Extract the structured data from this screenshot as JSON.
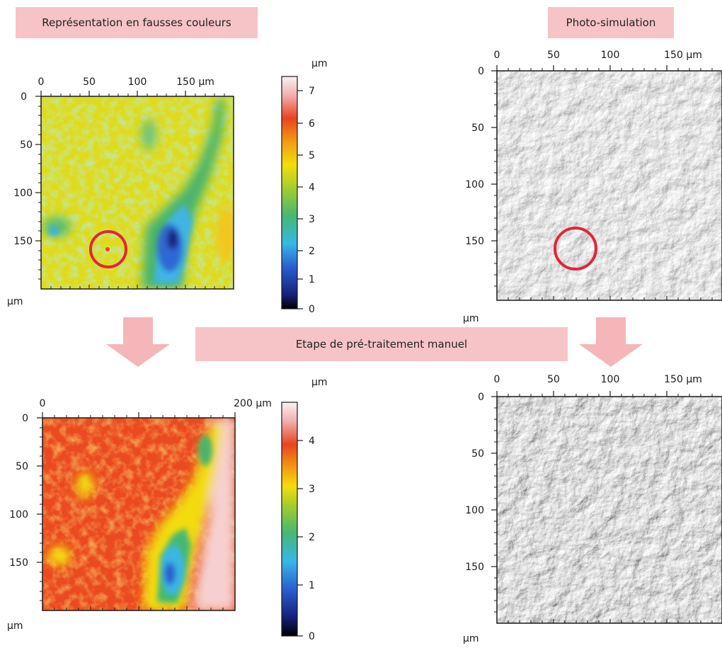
{
  "labels": {
    "false_color": "Représentation en fausses couleurs",
    "photo_sim": "Photo-simulation",
    "pretreatment": "Etape de pré-traitement manuel"
  },
  "panels": {
    "top_left": {
      "x_ticks": [
        "0",
        "50",
        "100",
        "150 µm"
      ],
      "y_ticks": [
        "0",
        "50",
        "100",
        "150"
      ],
      "unit_label": "µm"
    },
    "top_right": {
      "x_ticks": [
        "0",
        "50",
        "100",
        "150 µm"
      ],
      "y_ticks": [
        "0",
        "50",
        "100",
        "150"
      ],
      "unit_label": "µm"
    },
    "bottom_left": {
      "x_ticks": [
        "0",
        "200 µm"
      ],
      "y_ticks": [
        "0",
        "50",
        "100",
        "150"
      ],
      "unit_label": "µm"
    },
    "bottom_right": {
      "x_ticks": [
        "0",
        "50",
        "100",
        "150 µm"
      ],
      "y_ticks": [
        "0",
        "50",
        "100",
        "150"
      ],
      "unit_label": "µm"
    }
  },
  "colorbars": {
    "top": {
      "unit": "µm",
      "ticks": [
        "7",
        "6",
        "5",
        "4",
        "3",
        "2",
        "1",
        "0"
      ]
    },
    "bottom": {
      "unit": "µm",
      "ticks": [
        "4",
        "3",
        "2",
        "1",
        "0"
      ]
    }
  },
  "colors": {
    "label_bg": "#f6c4c6",
    "arrow": "#f4b6b8",
    "highlight_circle": "#e0263a"
  }
}
